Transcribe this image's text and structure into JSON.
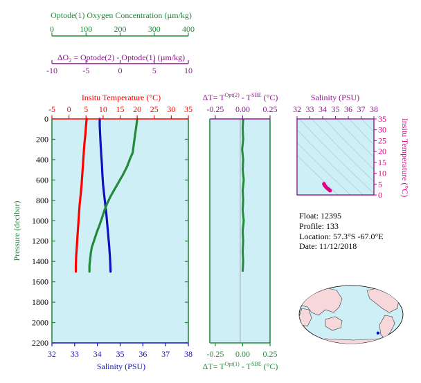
{
  "chart_data": [
    {
      "id": "main_profile",
      "type": "line",
      "ylabel": "Pressure (decibar)",
      "ylim": [
        2200,
        0
      ],
      "yticks": [
        0,
        200,
        400,
        600,
        800,
        1000,
        1200,
        1400,
        1600,
        1800,
        2000,
        2200
      ],
      "axes": {
        "oxygen": {
          "label": "Optode(1) Oxygen Concentration (µm/kg)",
          "ticks": [
            0,
            100,
            200,
            300,
            400
          ],
          "range": [
            0,
            400
          ],
          "color": "#228B3A"
        },
        "delta_o2": {
          "label_prefix": "ΔO",
          "label_sub": "2",
          "label_rest": " = Optode(2) - Optode(1)    (µm/kg)",
          "ticks": [
            -10,
            -5,
            0,
            5,
            10
          ],
          "range": [
            -10,
            10
          ],
          "color": "#8B1A8B"
        },
        "temperature": {
          "label": "Insitu Temperature (°C)",
          "ticks": [
            -5,
            0,
            5,
            10,
            15,
            20,
            25,
            30,
            35
          ],
          "range": [
            -5,
            35
          ],
          "color": "#FF0000"
        },
        "salinity": {
          "label": "Salinity (PSU)",
          "ticks": [
            32,
            33,
            34,
            35,
            36,
            37,
            38
          ],
          "range": [
            32,
            38
          ],
          "color": "#1010C0"
        }
      },
      "series": [
        {
          "name": "Temperature",
          "axis": "temperature",
          "color": "#FF0000",
          "points": [
            [
              5.2,
              0
            ],
            [
              5.0,
              60
            ],
            [
              4.8,
              150
            ],
            [
              4.5,
              250
            ],
            [
              4.3,
              350
            ],
            [
              4.1,
              450
            ],
            [
              3.9,
              550
            ],
            [
              3.7,
              650
            ],
            [
              3.4,
              750
            ],
            [
              3.1,
              850
            ],
            [
              2.9,
              950
            ],
            [
              2.7,
              1050
            ],
            [
              2.5,
              1150
            ],
            [
              2.3,
              1250
            ],
            [
              2.1,
              1350
            ],
            [
              2.0,
              1440
            ],
            [
              2.0,
              1500
            ]
          ]
        },
        {
          "name": "Salinity",
          "axis": "salinity",
          "color": "#1010C0",
          "points": [
            [
              34.1,
              0
            ],
            [
              34.1,
              60
            ],
            [
              34.12,
              150
            ],
            [
              34.14,
              250
            ],
            [
              34.17,
              350
            ],
            [
              34.2,
              450
            ],
            [
              34.22,
              550
            ],
            [
              34.25,
              650
            ],
            [
              34.3,
              750
            ],
            [
              34.35,
              850
            ],
            [
              34.4,
              950
            ],
            [
              34.44,
              1050
            ],
            [
              34.48,
              1150
            ],
            [
              34.52,
              1250
            ],
            [
              34.55,
              1350
            ],
            [
              34.57,
              1440
            ],
            [
              34.58,
              1500
            ]
          ]
        },
        {
          "name": "Oxygen",
          "axis": "oxygen",
          "color": "#228B3A",
          "points": [
            [
              250,
              0
            ],
            [
              248,
              60
            ],
            [
              244,
              150
            ],
            [
              240,
              250
            ],
            [
              237,
              330
            ],
            [
              228,
              400
            ],
            [
              220,
              470
            ],
            [
              208,
              550
            ],
            [
              196,
              620
            ],
            [
              184,
              690
            ],
            [
              172,
              760
            ],
            [
              162,
              830
            ],
            [
              154,
              900
            ],
            [
              147,
              970
            ],
            [
              140,
              1040
            ],
            [
              133,
              1100
            ],
            [
              127,
              1160
            ],
            [
              122,
              1210
            ],
            [
              117,
              1260
            ],
            [
              114,
              1320
            ],
            [
              112,
              1380
            ],
            [
              110,
              1440
            ],
            [
              110,
              1500
            ]
          ]
        }
      ]
    },
    {
      "id": "delta_t",
      "type": "line",
      "top_label": "ΔT= T",
      "top_sup1": "Opt(2)",
      "top_mid": " - T",
      "top_sup2": "SBE",
      "top_unit": " (°C)",
      "bottom_label": "ΔT= T",
      "bottom_sup1": "Opt(1)",
      "bottom_mid": " - T",
      "bottom_sup2": "SBE",
      "bottom_unit": " (°C)",
      "xticks": [
        -0.25,
        0.0,
        0.25
      ],
      "xticklabels": [
        "-0.25",
        "0.00",
        "0.25"
      ],
      "xlim": [
        -0.3,
        0.25
      ],
      "ylim": [
        2200,
        0
      ],
      "series": [
        {
          "name": "ΔT",
          "color": "#228B3A",
          "points": [
            [
              0.005,
              0
            ],
            [
              0.0,
              100
            ],
            [
              0.005,
              200
            ],
            [
              -0.005,
              300
            ],
            [
              0.005,
              400
            ],
            [
              0.0,
              500
            ],
            [
              0.01,
              600
            ],
            [
              0.0,
              700
            ],
            [
              0.005,
              800
            ],
            [
              0.0,
              900
            ],
            [
              0.01,
              1000
            ],
            [
              0.0,
              1100
            ],
            [
              0.005,
              1200
            ],
            [
              0.0,
              1300
            ],
            [
              0.005,
              1400
            ],
            [
              0.0,
              1500
            ]
          ]
        }
      ]
    },
    {
      "id": "ts_diagram",
      "type": "scatter",
      "xlabel": "Salinity (PSU)",
      "ylabel": "Insitu Temperature (°C)",
      "xticks": [
        32,
        33,
        34,
        35,
        36,
        37,
        38
      ],
      "yticks": [
        0,
        5,
        10,
        15,
        20,
        25,
        30,
        35
      ],
      "xlim": [
        32,
        38
      ],
      "ylim": [
        0,
        35
      ],
      "color": "#E0008A",
      "points": [
        [
          34.1,
          5.2
        ],
        [
          34.1,
          5.0
        ],
        [
          34.12,
          4.8
        ],
        [
          34.14,
          4.5
        ],
        [
          34.17,
          4.3
        ],
        [
          34.2,
          4.1
        ],
        [
          34.22,
          3.9
        ],
        [
          34.25,
          3.7
        ],
        [
          34.3,
          3.4
        ],
        [
          34.35,
          3.1
        ],
        [
          34.4,
          2.9
        ],
        [
          34.44,
          2.7
        ],
        [
          34.48,
          2.5
        ],
        [
          34.52,
          2.3
        ],
        [
          34.55,
          2.1
        ],
        [
          34.57,
          2.0
        ],
        [
          34.58,
          2.0
        ]
      ]
    }
  ],
  "float_info": {
    "float": "Float:  12395",
    "profile": "Profile:  133",
    "location": "Location:  57.3°S  -67.0°E",
    "date": "Date:  11/12/2018"
  },
  "map": {
    "marker_lat": -57.3,
    "marker_lon": -67.0,
    "ocean_color": "#CFEFF7",
    "land_color": "#F7D8DA",
    "marker_color": "#1010C0"
  }
}
